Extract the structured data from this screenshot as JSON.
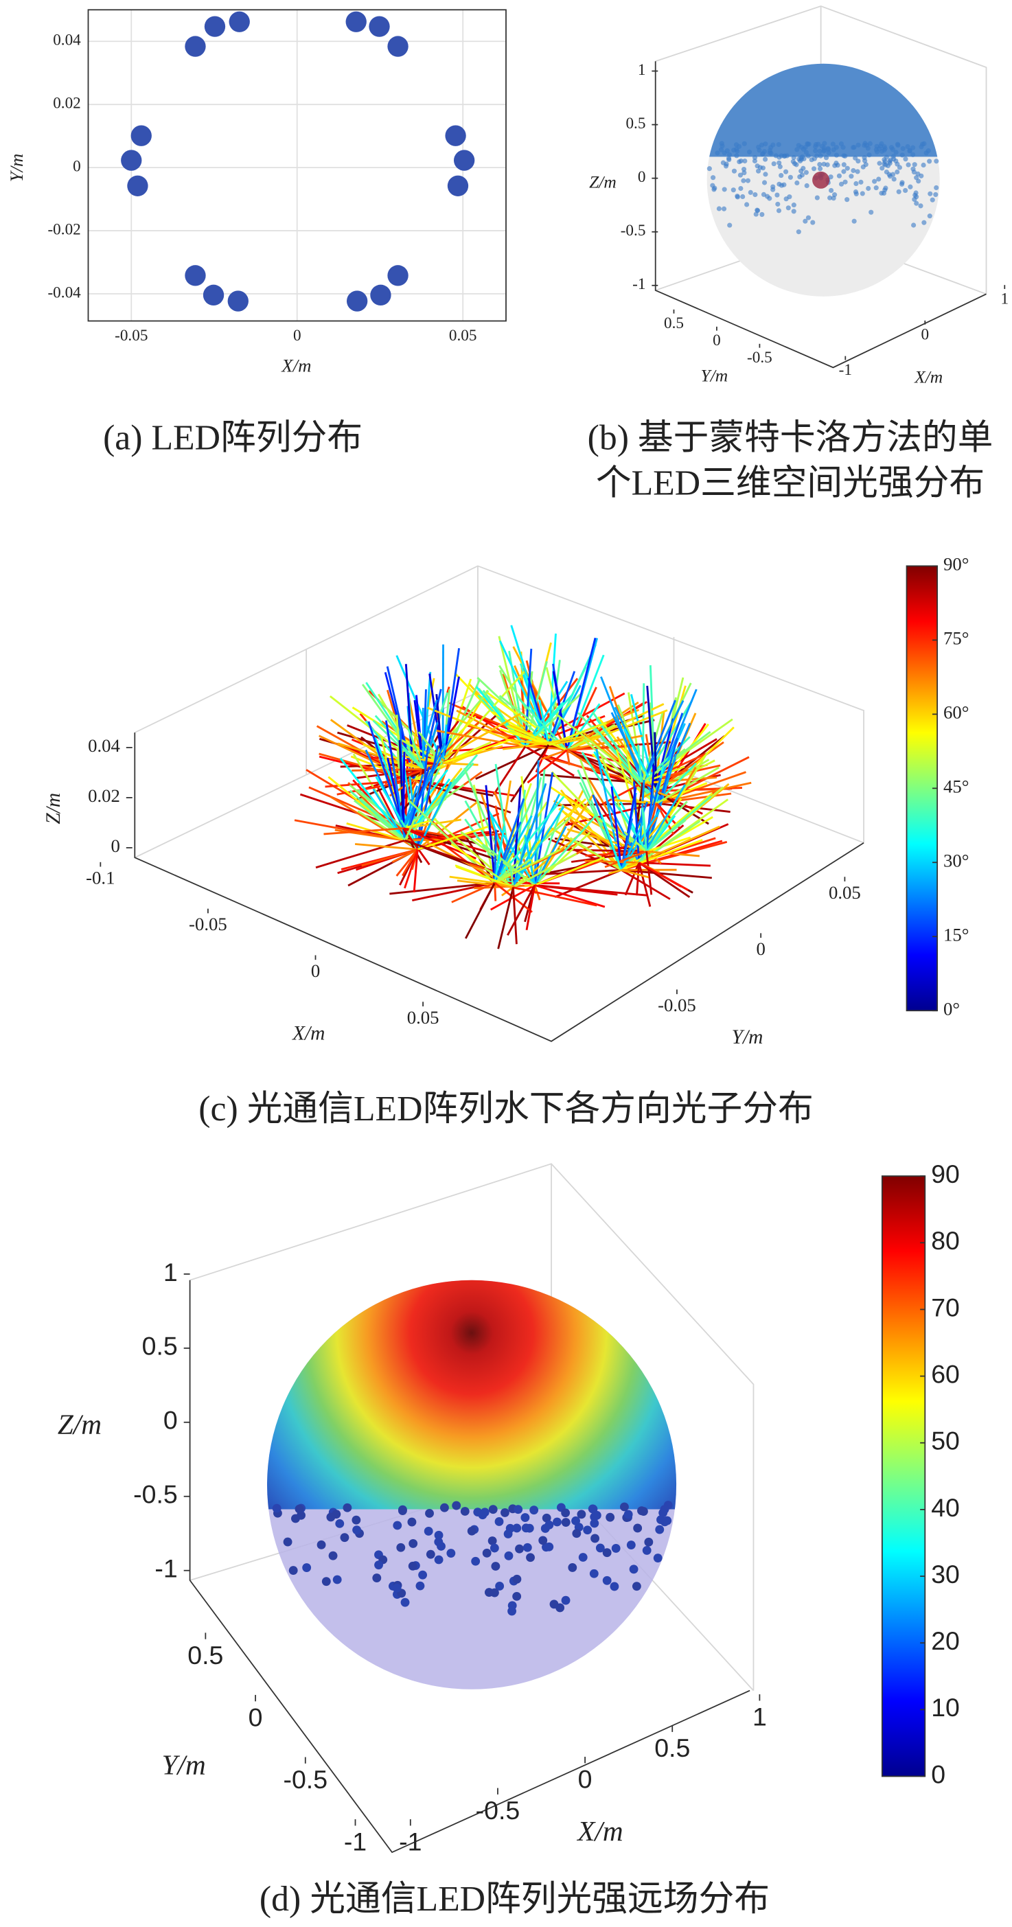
{
  "chart_data": [
    {
      "type": "scatter",
      "caption": "(a) LED阵列分布",
      "xlabel": "X/m",
      "ylabel": "Y/m",
      "x": [
        0.0178,
        0.0248,
        0.0304,
        -0.0174,
        -0.0248,
        -0.0307,
        0.0478,
        0.0504,
        0.0485,
        -0.047,
        -0.05,
        -0.0481,
        0.0304,
        0.0252,
        0.0181,
        -0.0307,
        -0.0252,
        -0.0178
      ],
      "y": [
        0.0462,
        0.0447,
        0.0384,
        0.0462,
        0.0447,
        0.0384,
        0.0101,
        0.0023,
        -0.0058,
        0.0101,
        0.0023,
        -0.0058,
        -0.0342,
        -0.0404,
        -0.0423,
        -0.0342,
        -0.0404,
        -0.0423
      ],
      "color": "#3552b0",
      "xlim": [
        -0.063,
        0.063
      ],
      "ylim": [
        -0.0486,
        0.05
      ],
      "xticks": [
        -0.05,
        0,
        0.05
      ],
      "yticks": [
        -0.04,
        -0.02,
        0,
        0.02,
        0.04
      ],
      "grid": true
    },
    {
      "type": "sphere3d",
      "caption": [
        "(b) 基于蒙特卡洛方法的单",
        "个LED三维空间光强分布"
      ],
      "xlabel": "X/m",
      "ylabel": "Y/m",
      "zlabel": "Z/m",
      "xlim": [
        -1,
        1
      ],
      "ylim": [
        -1,
        1
      ],
      "zlim": [
        -1,
        1
      ],
      "xticks": [
        -1,
        0,
        1
      ],
      "yticks": [
        0.5,
        0,
        -0.5
      ],
      "zticks": [
        1,
        0.5,
        0,
        -0.5,
        -1
      ],
      "color": "#3a7bc8"
    },
    {
      "type": "rays3d",
      "caption": "(c) 光通信LED阵列水下各方向光子分布",
      "xlabel": "X/m",
      "ylabel": "Y/m",
      "zlabel": "Z/m",
      "xlim": [
        -0.1,
        0.1
      ],
      "ylim": [
        -0.1,
        0.1
      ],
      "zlim": [
        0,
        0.045
      ],
      "xticks": [
        -0.1,
        -0.05,
        0,
        0.05
      ],
      "yticks": [
        -0.05,
        0,
        0.05
      ],
      "zticks": [
        0,
        0.02,
        0.04
      ],
      "colorbar": {
        "lim": [
          0,
          90
        ],
        "ticks": [
          {
            "value": 0,
            "label": "0°"
          },
          {
            "value": 15,
            "label": "15°"
          },
          {
            "value": 30,
            "label": "30°"
          },
          {
            "value": 45,
            "label": "45°"
          },
          {
            "value": 60,
            "label": "60°"
          },
          {
            "value": 75,
            "label": "75°"
          },
          {
            "value": 90,
            "label": "90°"
          }
        ]
      }
    },
    {
      "type": "sphere3d",
      "caption": "(d) 光通信LED阵列光强远场分布",
      "xlabel": "X/m",
      "ylabel": "Y/m",
      "zlabel": "Z/m",
      "xlim": [
        -1,
        1
      ],
      "ylim": [
        -1,
        1
      ],
      "zlim": [
        -1,
        1
      ],
      "xticks": [
        -1,
        -0.5,
        0,
        0.5,
        1
      ],
      "yticks": [
        0.5,
        0,
        -0.5,
        -1
      ],
      "zticks": [
        1,
        0.5,
        0,
        -0.5,
        -1
      ],
      "color": "#b8b4e8",
      "colorbar": {
        "lim": [
          0,
          90
        ],
        "ticks": [
          0,
          10,
          20,
          30,
          40,
          50,
          60,
          70,
          80,
          90
        ]
      }
    }
  ]
}
